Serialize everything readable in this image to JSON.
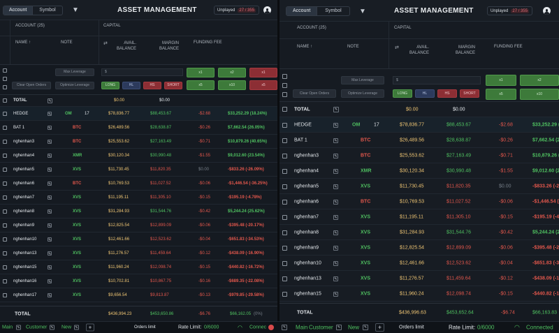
{
  "tabs": {
    "account": "Account",
    "symbol": "Symbol"
  },
  "title": "ASSET MANAGEMENT",
  "unplayed": {
    "label": "Unplayed",
    "count": "27 / 355"
  },
  "headers": {
    "account": "ACCOUNT (25)",
    "capital": "CAPITAL",
    "name": "NAME",
    "note": "NOTE",
    "avail_balance": "AVAIL. BALANCE",
    "margin_balance": "MARGIN BALANCE",
    "funding_fee": "FUNDING FEE"
  },
  "controls": {
    "max_leverage": "Max Leverage",
    "dollar": "$",
    "clear_open_orders": "Clear Open Orders",
    "optimize_leverage": "Optimize Leverage",
    "long": "LONG",
    "hl": "HL",
    "hs": "HS",
    "short": "SHORT",
    "x1": "x1",
    "x2": "x2",
    "x5": "x5",
    "x10": "x10"
  },
  "total_row": {
    "name": "TOTAL",
    "avail": "$0.00",
    "margin": "$0.00"
  },
  "rows": [
    {
      "name": "HEDGE",
      "note": "OM",
      "qty": "17",
      "avail": "$78,836.77",
      "margin": "$88,453.67",
      "funding": "-$2.68",
      "pnl": "$33,252.29 (18.24%)"
    },
    {
      "name": "BAT 1",
      "note": "BTC",
      "avail": "$26,489.56",
      "margin": "$28,638.87",
      "funding": "-$0.26",
      "pnl": "$7,662.54 (26.05%)"
    },
    {
      "name": "nghenhan3",
      "note": "BTC",
      "avail": "$25,553.62",
      "margin": "$27,163.49",
      "funding": "-$0.71",
      "pnl": "$10,879.26 (40.65%)"
    },
    {
      "name": "nghenhan4",
      "note": "XMR",
      "avail": "$30,120.34",
      "margin": "$30,990.48",
      "funding": "-$1.55",
      "pnl": "$9,012.60 (23.54%)"
    },
    {
      "name": "nghenhan5",
      "note": "XVS",
      "avail": "$11,730.45",
      "margin": "$11,820.35",
      "funding": "$0.00",
      "pnl": "-$833.26 (-26.09%)"
    },
    {
      "name": "nghenhan6",
      "note": "BTC",
      "avail": "$10,769.53",
      "margin": "$11,027.52",
      "funding": "-$0.06",
      "pnl": "-$1,446.54 (-36.25%)"
    },
    {
      "name": "nghenhan7",
      "note": "XVS",
      "avail": "$11,195.11",
      "margin": "$11,305.10",
      "funding": "-$0.15",
      "pnl": "-$195.19 (-4.78%)"
    },
    {
      "name": "nghenhan8",
      "note": "XVS",
      "avail": "$31,284.93",
      "margin": "$31,544.76",
      "funding": "-$0.42",
      "pnl": "$5,244.24 (25.62%)"
    },
    {
      "name": "nghenhan9",
      "note": "XVS",
      "avail": "$12,825.54",
      "margin": "$12,899.09",
      "funding": "-$0.06",
      "pnl": "-$395.48 (-20.17%)"
    },
    {
      "name": "nghenhan10",
      "note": "XVS",
      "avail": "$12,461.66",
      "margin": "$12,523.62",
      "funding": "-$0.04",
      "pnl": "-$651.83 (-34.53%)"
    },
    {
      "name": "nghenhan13",
      "note": "XVS",
      "avail": "$11,276.57",
      "margin": "$11,459.64",
      "funding": "-$0.12",
      "pnl": "-$438.09 (-16.90%)"
    },
    {
      "name": "nghenhan15",
      "note": "XVS",
      "avail": "$11,960.24",
      "margin": "$12,098.74",
      "funding": "-$0.15",
      "pnl": "-$440.82 (-16.72%)"
    },
    {
      "name": "nghenhan16",
      "note": "XVS",
      "avail": "$10,702.81",
      "margin": "$10,867.75",
      "funding": "-$0.16",
      "pnl": "-$689.35 (-22.08%)"
    },
    {
      "name": "nghenhan17",
      "note": "XVS",
      "avail": "$9,656.54",
      "margin": "$9,813.87",
      "funding": "-$0.13",
      "pnl": "-$979.85 (-29.58%)"
    }
  ],
  "footer_total": {
    "label": "TOTAL",
    "avail_left": "$436,994.23",
    "margin_left": "$453,650.86",
    "funding": "-$6.76",
    "pnl_left": "$66,162.05",
    "pnl_pct_left": "(0%)",
    "avail_right": "$436,996.63",
    "margin_right": "$453,652.64",
    "funding_right": "-$6.74",
    "pnl_right": "$66,163.83"
  },
  "status": {
    "tab_main": "Main",
    "tab_customer": "Customer",
    "tab_new": "New",
    "plus": "+",
    "orders_limit": "Orders limit",
    "rate_limit_label": "Rate Limit:",
    "rate_limit_value": "0/6000",
    "connected": "Connected",
    "connected_short": "Connec"
  },
  "colors": {
    "green": "#4fc060",
    "red": "#e2574c",
    "yellow": "#f0c674"
  }
}
